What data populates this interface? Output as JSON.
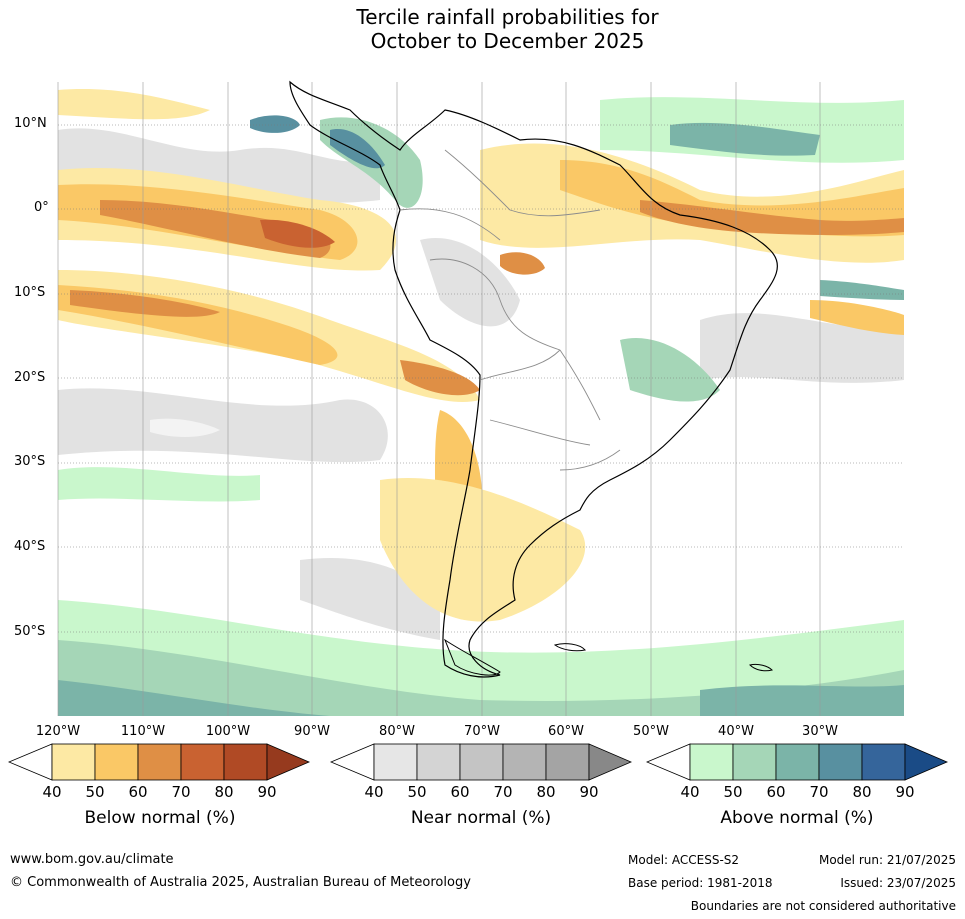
{
  "title": {
    "line1": "Tercile rainfall probabilities for",
    "line2": "October to December 2025"
  },
  "map": {
    "lat_labels": [
      "10°N",
      "0°",
      "10°S",
      "20°S",
      "30°S",
      "40°S",
      "50°S"
    ],
    "lon_labels": [
      "120°W",
      "110°W",
      "100°W",
      "90°W",
      "80°W",
      "70°W",
      "60°W",
      "50°W",
      "40°W",
      "30°W"
    ],
    "colors": {
      "land_outline": "#000000",
      "borders": "#8c8c8c",
      "gridline": "#777777"
    }
  },
  "colorbars": [
    {
      "id": "below",
      "title": "Below normal (%)",
      "ticks": [
        "40",
        "50",
        "60",
        "70",
        "80",
        "90"
      ],
      "colors": [
        "#ffffff",
        "#fde9a4",
        "#fac866",
        "#df8f45",
        "#c96231",
        "#b04a25",
        "#963a1e"
      ]
    },
    {
      "id": "near",
      "title": "Near normal (%)",
      "ticks": [
        "40",
        "50",
        "60",
        "70",
        "80",
        "90"
      ],
      "colors": [
        "#ffffff",
        "#e6e6e6",
        "#d4d4d4",
        "#c4c4c4",
        "#b4b4b4",
        "#a4a4a4",
        "#888888"
      ]
    },
    {
      "id": "above",
      "title": "Above normal (%)",
      "ticks": [
        "40",
        "50",
        "60",
        "70",
        "80",
        "90"
      ],
      "colors": [
        "#ffffff",
        "#c9f7cc",
        "#a5d6b7",
        "#7bb4a8",
        "#5890a0",
        "#35659b",
        "#1a4b86"
      ]
    }
  ],
  "footer": {
    "url": "www.bom.gov.au/climate",
    "copyright": "© Commonwealth of Australia 2025, Australian Bureau of Meteorology",
    "model": "Model: ACCESS-S2",
    "base_period": "Base period: 1981-2018",
    "model_run": "Model run: 21/07/2025",
    "issued": "Issued: 23/07/2025",
    "disclaimer": "Boundaries are not considered authoritative"
  }
}
